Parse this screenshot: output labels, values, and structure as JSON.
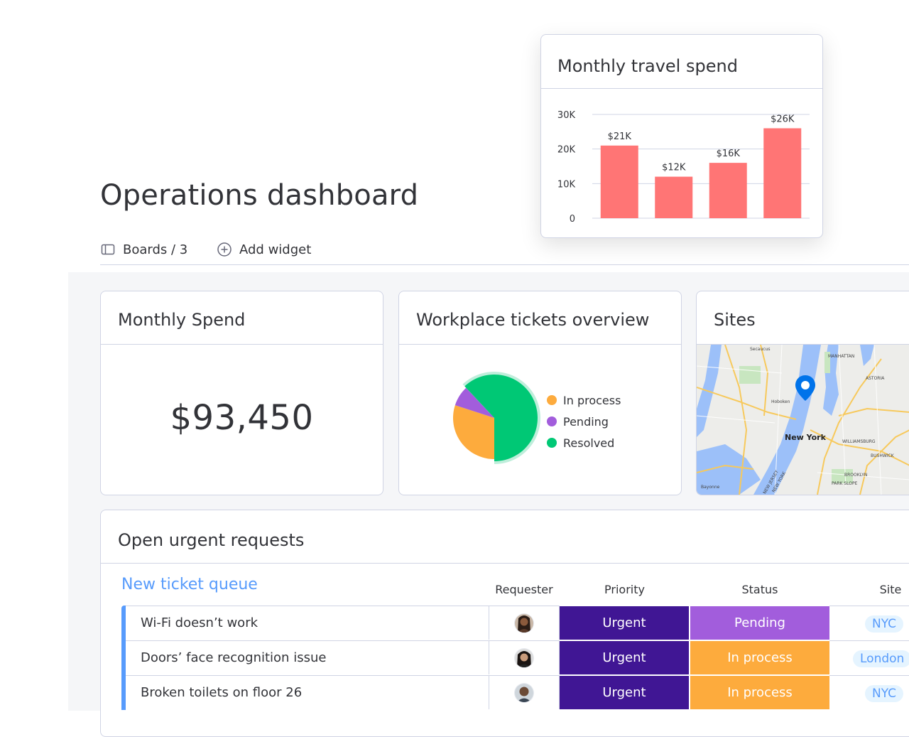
{
  "page": {
    "title": "Operations dashboard",
    "toolbar": {
      "boards_label": "Boards / 3",
      "add_widget_label": "Add widget"
    }
  },
  "travel_chart": {
    "title": "Monthly travel spend",
    "chart_data": {
      "type": "bar",
      "title": "Monthly travel spend",
      "categories": [
        "",
        "",
        "",
        ""
      ],
      "values": [
        21,
        12,
        16,
        26
      ],
      "data_labels": [
        "$21K",
        "$12K",
        "$16K",
        "$26K"
      ],
      "y_ticks": [
        "0",
        "10K",
        "20K",
        "30K"
      ],
      "ylim": [
        0,
        30
      ],
      "grid": true,
      "bar_color": "#ff7575"
    }
  },
  "monthly_spend": {
    "title": "Monthly Spend",
    "value": "$93,450"
  },
  "tickets_overview": {
    "title": "Workplace tickets overview",
    "chart_data": {
      "type": "pie",
      "labels": [
        "In process",
        "Pending",
        "Resolved"
      ],
      "values": [
        30,
        8,
        62
      ],
      "colors": [
        "#fdab3d",
        "#a25ddc",
        "#00c875"
      ]
    }
  },
  "sites": {
    "title": "Sites",
    "map_labels": [
      "Secaucus",
      "MANHATTAN",
      "Hoboken",
      "ASTORIA",
      "New York",
      "WILLIAMSBURG",
      "BUSHWICK",
      "BROOKLYN",
      "PARK SLOPE",
      "Bayonne",
      "NEW YORK",
      "NEW JERSEY"
    ],
    "marker": "location-pin-icon"
  },
  "requests": {
    "title": "Open urgent requests",
    "group_title": "New ticket queue",
    "columns": [
      "Requester",
      "Priority",
      "Status",
      "Site"
    ],
    "rows": [
      {
        "name": "Wi-Fi doesn’t work",
        "priority": "Urgent",
        "status": "Pending",
        "status_color": "#a25ddc",
        "site": "NYC"
      },
      {
        "name": "Doors’ face recognition issue",
        "priority": "Urgent",
        "status": "In process",
        "status_color": "#fdab3d",
        "site": "London"
      },
      {
        "name": "Broken toilets on floor 26",
        "priority": "Urgent",
        "status": "In process",
        "status_color": "#fdab3d",
        "site": "NYC"
      }
    ],
    "priority_color": "#401694",
    "group_color": "#579bfc"
  }
}
